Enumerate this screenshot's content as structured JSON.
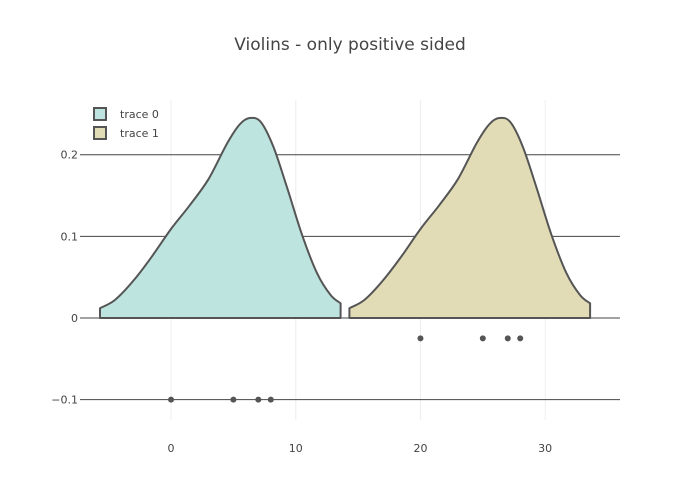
{
  "chart_data": {
    "type": "violin",
    "title": "Violins - only positive sided",
    "xlabel": "",
    "ylabel": "",
    "xlim": [
      -7.3,
      36
    ],
    "ylim": [
      -0.125,
      0.267
    ],
    "x_ticks": [
      "0",
      "10",
      "20",
      "30"
    ],
    "x_tick_values": [
      0,
      10,
      20,
      30
    ],
    "y_ticks": [
      "0.2",
      "0.1",
      "0",
      "−0.1"
    ],
    "y_tick_values": [
      0.2,
      0.1,
      0,
      -0.1
    ],
    "grid": {
      "y": true,
      "x": true
    },
    "legend": {
      "placement": "top-left"
    },
    "series": [
      {
        "name": "trace 0",
        "fill": "#bde4df",
        "line": "#555555",
        "points": [
          0,
          5,
          7,
          8
        ],
        "point_y": -0.1,
        "density": {
          "x": [
            -5.7,
            -4.5,
            -3,
            -1.5,
            0,
            1.5,
            3,
            4.5,
            5.5,
            6.3,
            7.2,
            8.2,
            9.3,
            10.5,
            11.7,
            12.8,
            13.6
          ],
          "y": [
            0.012,
            0.022,
            0.046,
            0.076,
            0.109,
            0.138,
            0.17,
            0.214,
            0.237,
            0.245,
            0.24,
            0.21,
            0.16,
            0.102,
            0.055,
            0.028,
            0.018
          ]
        }
      },
      {
        "name": "trace 1",
        "fill": "#e2dcb6",
        "line": "#555555",
        "points": [
          20,
          25,
          27,
          28
        ],
        "point_y": -0.025,
        "density": {
          "x": [
            14.3,
            15.5,
            17,
            18.5,
            20,
            21.5,
            23,
            24.5,
            25.5,
            26.3,
            27.2,
            28.2,
            29.3,
            30.5,
            31.7,
            32.8,
            33.6
          ],
          "y": [
            0.012,
            0.022,
            0.046,
            0.076,
            0.109,
            0.138,
            0.17,
            0.214,
            0.237,
            0.245,
            0.24,
            0.21,
            0.16,
            0.102,
            0.055,
            0.028,
            0.018
          ]
        }
      }
    ]
  }
}
